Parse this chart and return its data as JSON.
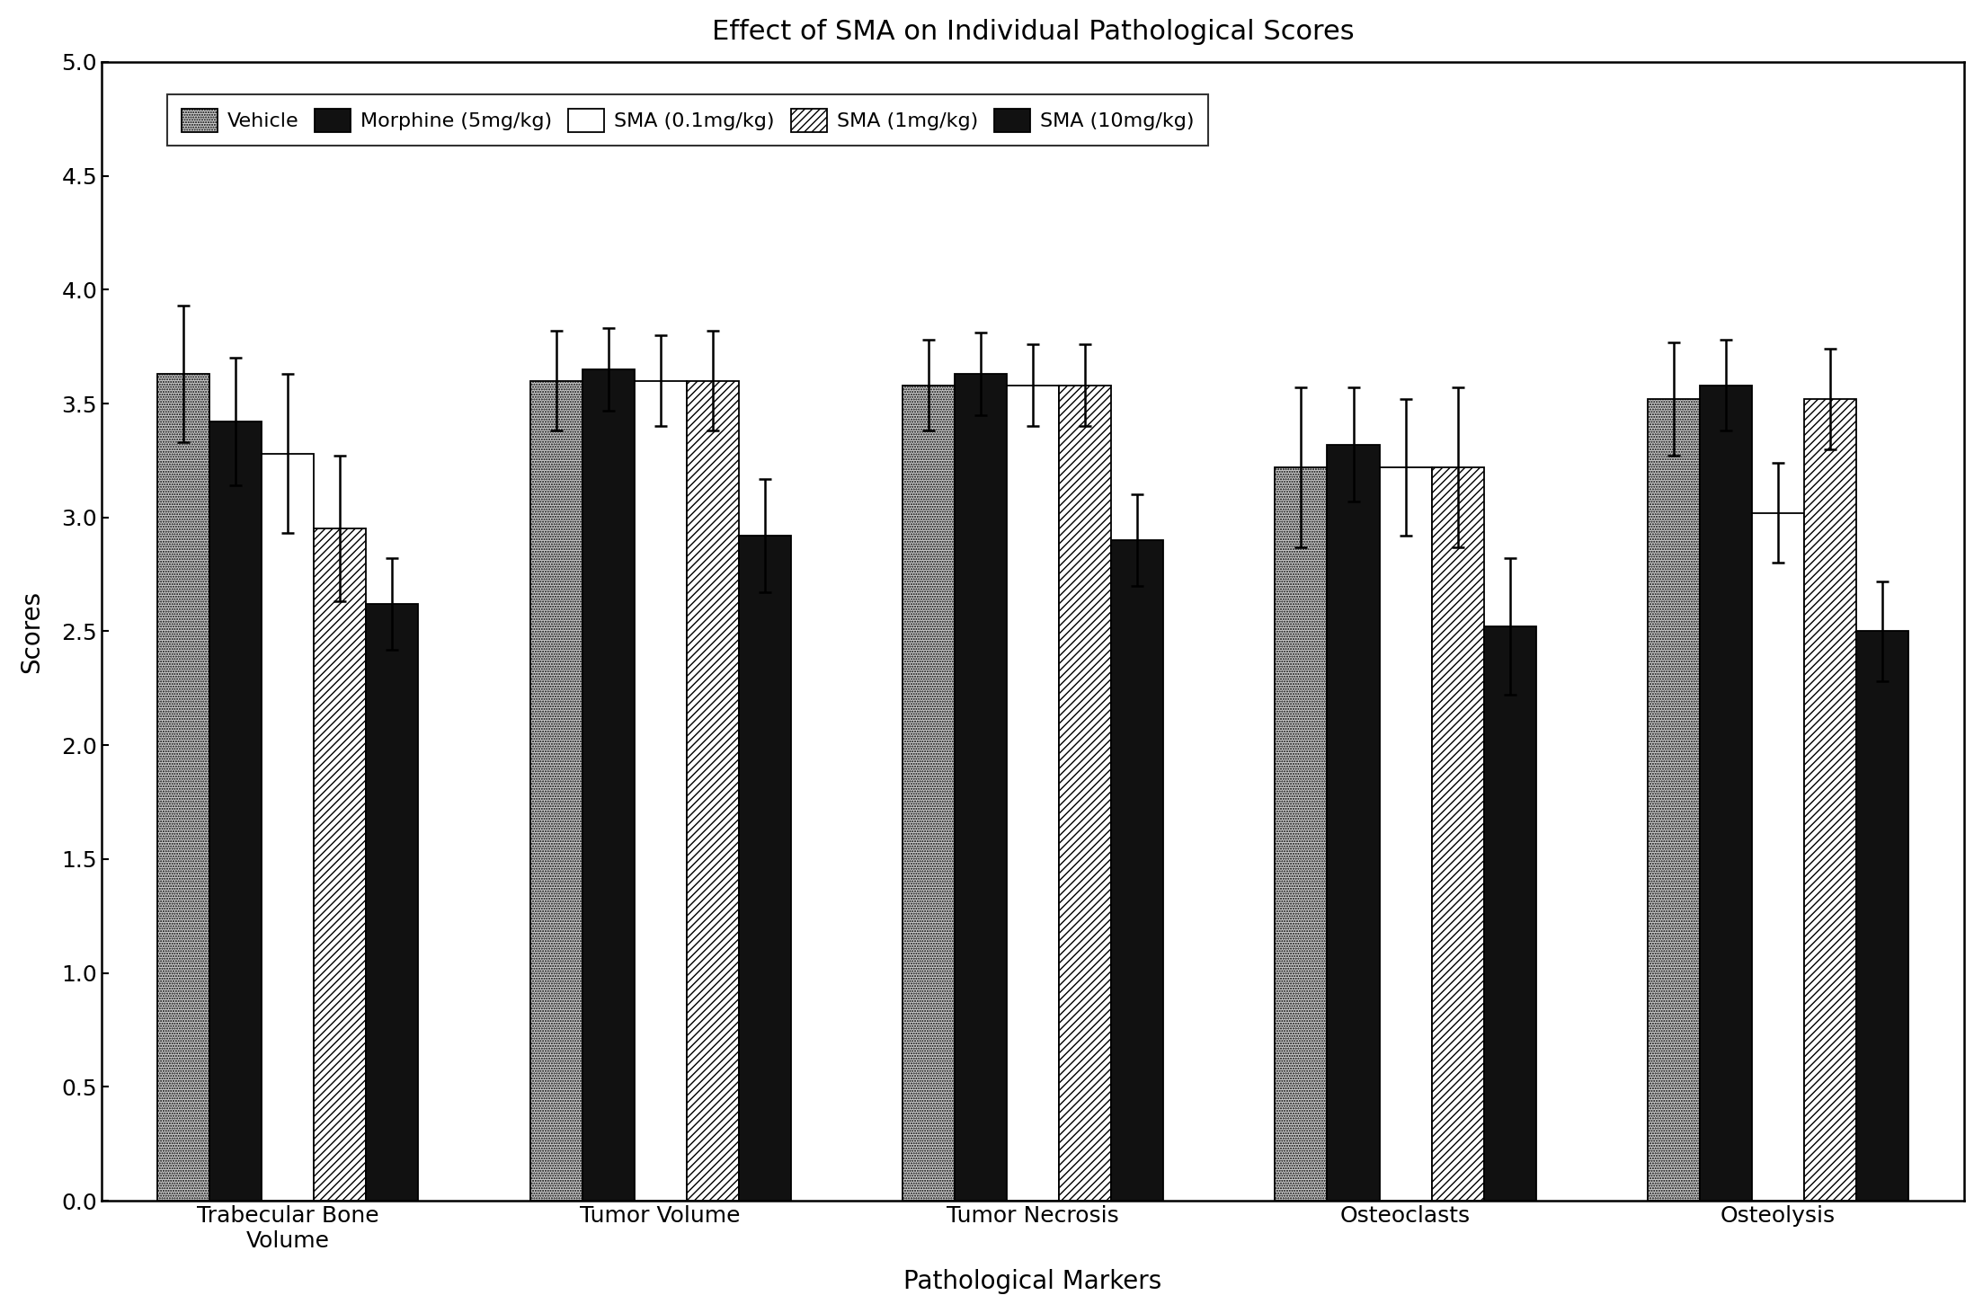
{
  "title": "Effect of SMA on Individual Pathological Scores",
  "xlabel": "Pathological Markers",
  "ylabel": "Scores",
  "ylim": [
    0.0,
    5.0
  ],
  "yticks": [
    0.0,
    0.5,
    1.0,
    1.5,
    2.0,
    2.5,
    3.0,
    3.5,
    4.0,
    4.5,
    5.0
  ],
  "categories": [
    "Trabecular Bone\nVolume",
    "Tumor Volume",
    "Tumor Necrosis",
    "Osteoclasts",
    "Osteolysis"
  ],
  "series_labels": [
    "Vehicle",
    "Morphine (5mg/kg)",
    "SMA (0.1mg/kg)",
    "SMA (1mg/kg)",
    "SMA (10mg/kg)"
  ],
  "bar_values": [
    [
      3.63,
      3.42,
      3.28,
      2.95,
      2.62
    ],
    [
      3.6,
      3.65,
      3.6,
      3.6,
      2.92
    ],
    [
      3.58,
      3.63,
      3.58,
      3.58,
      2.9
    ],
    [
      3.22,
      3.32,
      3.22,
      3.22,
      2.52
    ],
    [
      3.52,
      3.58,
      3.02,
      3.52,
      2.5
    ]
  ],
  "error_values": [
    [
      0.3,
      0.28,
      0.35,
      0.32,
      0.2
    ],
    [
      0.22,
      0.18,
      0.2,
      0.22,
      0.25
    ],
    [
      0.2,
      0.18,
      0.18,
      0.18,
      0.2
    ],
    [
      0.35,
      0.25,
      0.3,
      0.35,
      0.3
    ],
    [
      0.25,
      0.2,
      0.22,
      0.22,
      0.22
    ]
  ],
  "hatch_patterns": [
    "......",
    "",
    "",
    "////",
    ""
  ],
  "bar_colors": [
    "white",
    "black",
    "white",
    "white",
    "black"
  ],
  "bar_facecolors": [
    "#cccccc",
    "#111111",
    "#ffffff",
    "#ffffff",
    "#111111"
  ],
  "bar_edgecolors": [
    "#000000",
    "#000000",
    "#000000",
    "#000000",
    "#000000"
  ],
  "title_fontsize": 22,
  "axis_label_fontsize": 20,
  "tick_fontsize": 18,
  "legend_fontsize": 16,
  "bar_width": 0.14
}
